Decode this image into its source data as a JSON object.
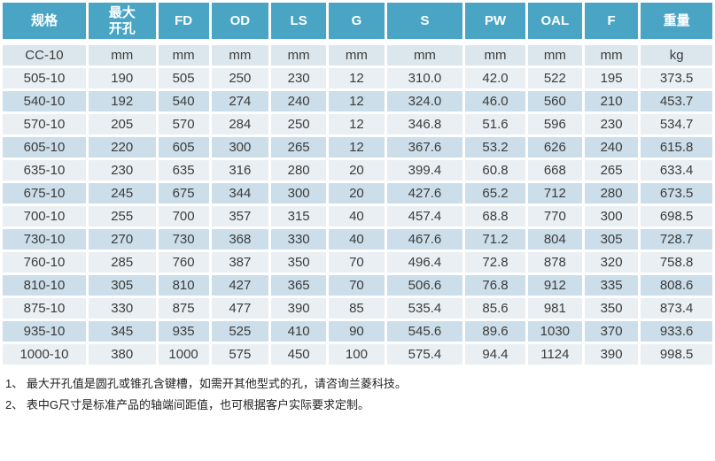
{
  "table": {
    "headers": [
      "规格",
      "最大\n开孔",
      "FD",
      "OD",
      "LS",
      "G",
      "S",
      "PW",
      "OAL",
      "F",
      "重量"
    ],
    "unit_row": [
      "CC-10",
      "mm",
      "mm",
      "mm",
      "mm",
      "mm",
      "mm",
      "mm",
      "mm",
      "mm",
      "kg"
    ],
    "rows": [
      [
        "505-10",
        "190",
        "505",
        "250",
        "230",
        "12",
        "310.0",
        "42.0",
        "522",
        "195",
        "373.5"
      ],
      [
        "540-10",
        "192",
        "540",
        "274",
        "240",
        "12",
        "324.0",
        "46.0",
        "560",
        "210",
        "453.7"
      ],
      [
        "570-10",
        "205",
        "570",
        "284",
        "250",
        "12",
        "346.8",
        "51.6",
        "596",
        "230",
        "534.7"
      ],
      [
        "605-10",
        "220",
        "605",
        "300",
        "265",
        "12",
        "367.6",
        "53.2",
        "626",
        "240",
        "615.8"
      ],
      [
        "635-10",
        "230",
        "635",
        "316",
        "280",
        "20",
        "399.4",
        "60.8",
        "668",
        "265",
        "633.4"
      ],
      [
        "675-10",
        "245",
        "675",
        "344",
        "300",
        "20",
        "427.6",
        "65.2",
        "712",
        "280",
        "673.5"
      ],
      [
        "700-10",
        "255",
        "700",
        "357",
        "315",
        "40",
        "457.4",
        "68.8",
        "770",
        "300",
        "698.5"
      ],
      [
        "730-10",
        "270",
        "730",
        "368",
        "330",
        "40",
        "467.6",
        "71.2",
        "804",
        "305",
        "728.7"
      ],
      [
        "760-10",
        "285",
        "760",
        "387",
        "350",
        "70",
        "496.4",
        "72.8",
        "878",
        "320",
        "758.8"
      ],
      [
        "810-10",
        "305",
        "810",
        "427",
        "365",
        "70",
        "506.6",
        "76.8",
        "912",
        "335",
        "808.6"
      ],
      [
        "875-10",
        "330",
        "875",
        "477",
        "390",
        "85",
        "535.4",
        "85.6",
        "981",
        "350",
        "873.4"
      ],
      [
        "935-10",
        "345",
        "935",
        "525",
        "410",
        "90",
        "545.6",
        "89.6",
        "1030",
        "370",
        "933.6"
      ],
      [
        "1000-10",
        "380",
        "1000",
        "575",
        "450",
        "100",
        "575.4",
        "94.4",
        "1124",
        "390",
        "998.5"
      ]
    ]
  },
  "notes": [
    "1、 最大开孔值是圆孔或锥孔含键槽，如需开其他型式的孔，请咨询兰菱科技。",
    "2、 表中G尺寸是标准产品的轴端间距值，也可根据客户实际要求定制。"
  ],
  "colors": {
    "header_bg": "#4aa5c5",
    "header_text": "#ffffff",
    "unit_row_bg": "#dce7ed",
    "row_light_bg": "#e9eff3",
    "row_dark_bg": "#cbdee9",
    "cell_text": "#3c3c3c"
  }
}
